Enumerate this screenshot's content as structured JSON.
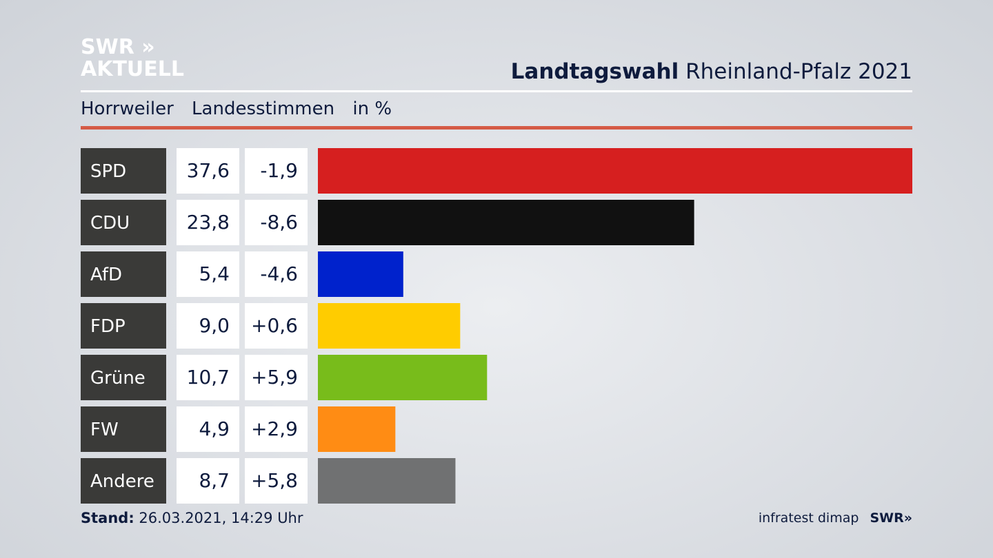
{
  "brand": {
    "logo_line1": "SWR »",
    "logo_line2": "AKTUELL",
    "footer_logo": "SWR»"
  },
  "header": {
    "title_bold": "Landtagswahl",
    "title_rest": "Rheinland-Pfalz 2021",
    "location": "Horrweiler",
    "measure": "Landesstimmen",
    "unit": "in %"
  },
  "footer": {
    "stand_label": "Stand:",
    "stand_value": "26.03.2021, 14:29 Uhr",
    "source": "infratest dimap"
  },
  "colors": {
    "accent_rule": "#d55a45",
    "label_box": "#3a3a38",
    "value_box": "#ffffff"
  },
  "chart_data": {
    "type": "bar",
    "orientation": "horizontal",
    "categories": [
      "SPD",
      "CDU",
      "AfD",
      "FDP",
      "Grüne",
      "FW",
      "Andere"
    ],
    "values": [
      37.6,
      23.8,
      5.4,
      9.0,
      10.7,
      4.9,
      8.7
    ],
    "value_labels": [
      "37,6",
      "23,8",
      "5,4",
      "9,0",
      "10,7",
      "4,9",
      "8,7"
    ],
    "change_labels": [
      "-1,9",
      "-8,6",
      "-4,6",
      "+0,6",
      "+5,9",
      "+2,9",
      "+5,8"
    ],
    "colors": [
      "#d61f1f",
      "#111111",
      "#0022cc",
      "#ffcc00",
      "#78bc1b",
      "#ff8c14",
      "#707172"
    ],
    "xlim": [
      0,
      37.6
    ]
  }
}
